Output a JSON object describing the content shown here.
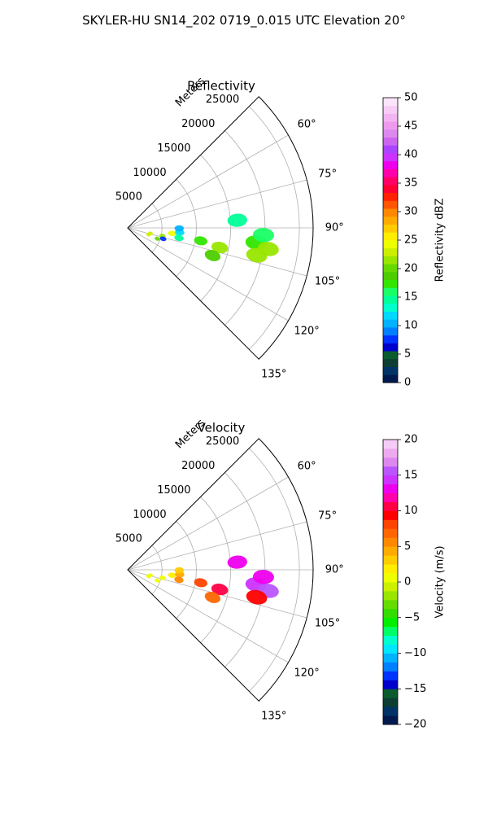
{
  "figure": {
    "title": "SKYLER-HU  SN14_202  0719_0.015 UTC Elevation 20°"
  },
  "chart_data": [
    {
      "type": "polar-sector",
      "title": "Reflectivity",
      "radial_axis_label": "Meters",
      "r_ticks": [
        5000,
        10000,
        15000,
        20000,
        25000
      ],
      "r_max": 27000,
      "theta_range_deg": [
        45,
        135
      ],
      "theta_ticks_deg": [
        60,
        75,
        90,
        105,
        120,
        135
      ],
      "theta_tick_labels": [
        "60°",
        "75°",
        "90°",
        "105°",
        "120°",
        "135°"
      ],
      "grid": true,
      "colorbar": {
        "label": "Reflectivity dBZ",
        "vmin": 0,
        "vmax": 50,
        "ticks": [
          0,
          5,
          10,
          15,
          20,
          25,
          30,
          35,
          40,
          45,
          50
        ],
        "colors": [
          "#001a4d",
          "#003366",
          "#0d3d33",
          "#0a5c2e",
          "#0000cc",
          "#0033ff",
          "#0080ff",
          "#00b3ff",
          "#00d9ff",
          "#00ffcc",
          "#00ff99",
          "#1aff66",
          "#33e600",
          "#4dcc00",
          "#66d900",
          "#99e600",
          "#ccee00",
          "#eeff00",
          "#ffee00",
          "#ffcc00",
          "#ffaa00",
          "#ff8800",
          "#ff5500",
          "#ff2200",
          "#ff0033",
          "#ff0066",
          "#ff00aa",
          "#ee00ee",
          "#cc33ff",
          "#aa44ff",
          "#cc66ee",
          "#dd88ee",
          "#ee99ee",
          "#f2b3f2",
          "#f7ccf7",
          "#fbe5fb"
        ]
      },
      "cells": [
        {
          "range": 6500,
          "azimuth": 97,
          "value": 24
        },
        {
          "range": 5200,
          "azimuth": 103,
          "value": 22
        },
        {
          "range": 3400,
          "azimuth": 103,
          "value": 23
        },
        {
          "range": 3200,
          "azimuth": 108,
          "value": 23
        },
        {
          "range": 4600,
          "azimuth": 110,
          "value": 20
        },
        {
          "range": 5400,
          "azimuth": 107,
          "value": 8
        },
        {
          "range": 7600,
          "azimuth": 95,
          "value": 12
        },
        {
          "range": 7500,
          "azimuth": 90.5,
          "value": 10
        },
        {
          "range": 7600,
          "azimuth": 101,
          "value": 15
        },
        {
          "range": 10800,
          "azimuth": 100,
          "value": 17
        },
        {
          "range": 13700,
          "azimuth": 102,
          "value": 21
        },
        {
          "range": 13000,
          "azimuth": 108,
          "value": 19
        },
        {
          "range": 18800,
          "azimuth": 96.5,
          "value": 17
        },
        {
          "range": 19800,
          "azimuth": 93,
          "value": 16
        },
        {
          "range": 20700,
          "azimuth": 98.5,
          "value": 22
        },
        {
          "range": 19200,
          "azimuth": 102,
          "value": 21
        },
        {
          "range": 16000,
          "azimuth": 86,
          "value": 14
        }
      ]
    },
    {
      "type": "polar-sector",
      "title": "Velocity",
      "radial_axis_label": "Meters",
      "r_ticks": [
        5000,
        10000,
        15000,
        20000,
        25000
      ],
      "r_max": 27000,
      "theta_range_deg": [
        45,
        135
      ],
      "theta_ticks_deg": [
        60,
        75,
        90,
        105,
        120,
        135
      ],
      "theta_tick_labels": [
        "60°",
        "75°",
        "90°",
        "105°",
        "120°",
        "135°"
      ],
      "grid": true,
      "colorbar": {
        "label": "Velocity (m/s)",
        "vmin": -20,
        "vmax": 20,
        "ticks": [
          -20,
          -15,
          -10,
          -5,
          0,
          5,
          10,
          15,
          20
        ],
        "colors": [
          "#001a4d",
          "#003366",
          "#0d3d33",
          "#0a5c2e",
          "#0000cc",
          "#0033ff",
          "#0080ff",
          "#00b3ff",
          "#00e6ff",
          "#00ffcc",
          "#00ff66",
          "#00ee00",
          "#33dd00",
          "#66dd00",
          "#99e600",
          "#ccf000",
          "#eeff00",
          "#ffee00",
          "#ffcc00",
          "#ffaa00",
          "#ff8800",
          "#ff6600",
          "#ff4400",
          "#ff0000",
          "#ff0044",
          "#ff00aa",
          "#ee00ee",
          "#cc33ff",
          "#bb55ff",
          "#dd88ee",
          "#eeaaee",
          "#f5ccf5"
        ]
      },
      "cells": [
        {
          "range": 6500,
          "azimuth": 97,
          "value": 2
        },
        {
          "range": 5200,
          "azimuth": 103,
          "value": 1
        },
        {
          "range": 3400,
          "azimuth": 103,
          "value": 1
        },
        {
          "range": 3200,
          "azimuth": 108,
          "value": 1
        },
        {
          "range": 4600,
          "azimuth": 110,
          "value": 1
        },
        {
          "range": 7600,
          "azimuth": 95,
          "value": 4
        },
        {
          "range": 7500,
          "azimuth": 90.5,
          "value": 3
        },
        {
          "range": 7600,
          "azimuth": 101,
          "value": 5
        },
        {
          "range": 10800,
          "azimuth": 100,
          "value": 8
        },
        {
          "range": 13700,
          "azimuth": 102,
          "value": 11
        },
        {
          "range": 13000,
          "azimuth": 108,
          "value": 7
        },
        {
          "range": 18800,
          "azimuth": 96.5,
          "value": 14
        },
        {
          "range": 19800,
          "azimuth": 93,
          "value": 13
        },
        {
          "range": 20700,
          "azimuth": 98.5,
          "value": 15
        },
        {
          "range": 19200,
          "azimuth": 102,
          "value": 9
        },
        {
          "range": 16000,
          "azimuth": 86,
          "value": 13
        }
      ]
    }
  ]
}
